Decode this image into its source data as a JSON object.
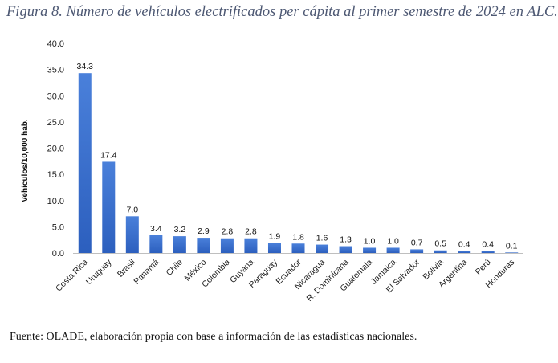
{
  "title": "Figura 8. Número de vehículos electrificados per cápita al primer semestre de 2024 en ALC.",
  "source": "Fuente: OLADE, elaboración propia con base a información de las estadísticas nacionales.",
  "chart_data": {
    "type": "bar",
    "title": "",
    "xlabel": "",
    "ylabel": "Vehículos/10,000 hab.",
    "ylim": [
      0,
      40
    ],
    "yticks": [
      "0.0",
      "5.0",
      "10.0",
      "15.0",
      "20.0",
      "25.0",
      "30.0",
      "35.0",
      "40.0"
    ],
    "grid": false,
    "bar_color": "#3a6fcf",
    "categories": [
      "Costa Rica",
      "Uruguay",
      "Brasil",
      "Panamá",
      "Chile",
      "México",
      "Colombia",
      "Guyana",
      "Paraguay",
      "Ecuador",
      "Nicaragua",
      "R. Dominicana",
      "Guatemala",
      "Jamaica",
      "El Salvador",
      "Bolivia",
      "Argentina",
      "Perú",
      "Honduras"
    ],
    "values": [
      34.3,
      17.4,
      7.0,
      3.4,
      3.2,
      2.9,
      2.8,
      2.8,
      1.9,
      1.8,
      1.6,
      1.3,
      1.0,
      1.0,
      0.7,
      0.5,
      0.4,
      0.4,
      0.1
    ],
    "data_labels": [
      "34.3",
      "17.4",
      "7.0",
      "3.4",
      "3.2",
      "2.9",
      "2.8",
      "2.8",
      "1.9",
      "1.8",
      "1.6",
      "1.3",
      "1.0",
      "1.0",
      "0.7",
      "0.5",
      "0.4",
      "0.4",
      "0.1"
    ]
  }
}
